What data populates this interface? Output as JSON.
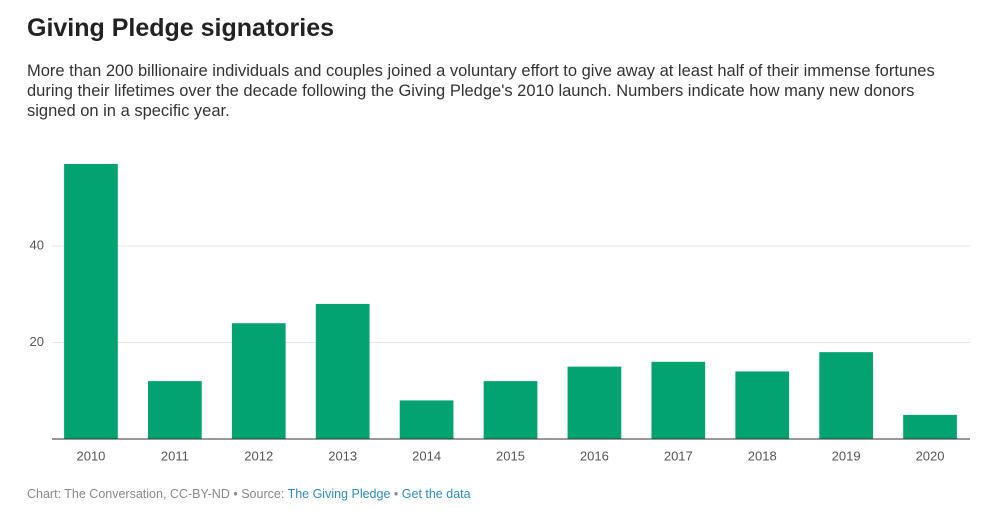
{
  "chart_data": {
    "type": "bar",
    "title": "Giving Pledge signatories",
    "subtitle": "More than 200 billionaire individuals and couples joined a voluntary effort to give away at least half of their immense fortunes during their lifetimes over the decade following the Giving Pledge's 2010 launch. Numbers indicate how many new donors signed on in a specific year.",
    "categories": [
      "2010",
      "2011",
      "2012",
      "2013",
      "2014",
      "2015",
      "2016",
      "2017",
      "2018",
      "2019",
      "2020"
    ],
    "values": [
      57,
      12,
      24,
      28,
      8,
      12,
      15,
      16,
      14,
      18,
      5
    ],
    "color": "#03a271",
    "ylim": [
      0,
      57
    ],
    "yticks": [
      20,
      40
    ],
    "grid": true,
    "footer": {
      "credit": "Chart: The Conversation, CC-BY-ND",
      "separator": "•",
      "source_label": "Source:",
      "source_link": "The Giving Pledge",
      "data_link": "Get the data"
    }
  }
}
